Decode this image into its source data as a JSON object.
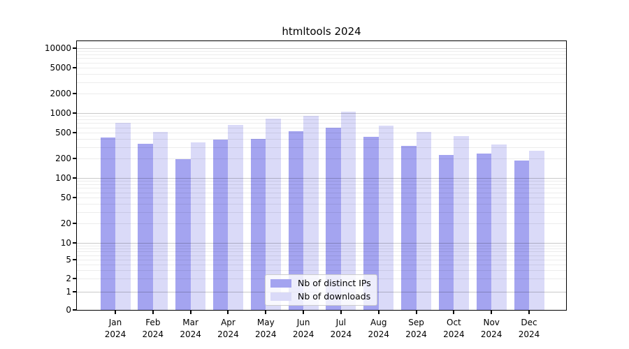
{
  "chart_data": {
    "type": "bar",
    "title": "htmltools 2024",
    "x_categories": [
      "Jan",
      "Feb",
      "Mar",
      "Apr",
      "May",
      "Jun",
      "Jul",
      "Aug",
      "Sep",
      "Oct",
      "Nov",
      "Dec"
    ],
    "x_year": "2024",
    "yscale": "log-with-zero-baseline",
    "ylim": [
      0,
      12800
    ],
    "yticks": [
      10000,
      5000,
      2000,
      1000,
      500,
      200,
      100,
      50,
      20,
      10,
      5,
      2,
      1,
      0
    ],
    "grid": "horizontal major and minor gridlines, light gray, drawn over bars",
    "legend_position": "lower-center-inside-plot",
    "series": [
      {
        "name": "Nb of distinct IPs",
        "color": "#a4a4f0",
        "values": [
          420,
          335,
          195,
          390,
          400,
          530,
          595,
          430,
          310,
          225,
          238,
          185
        ]
      },
      {
        "name": "Nb of downloads",
        "color": "#dadaf8",
        "values": [
          700,
          515,
          355,
          655,
          820,
          905,
          1050,
          645,
          510,
          440,
          325,
          260
        ]
      }
    ]
  },
  "colors": {
    "background": "#ffffff",
    "spine": "#000000",
    "text": "#000000",
    "grid_major": "#c9c9c9",
    "grid_minor": "#ececec"
  }
}
